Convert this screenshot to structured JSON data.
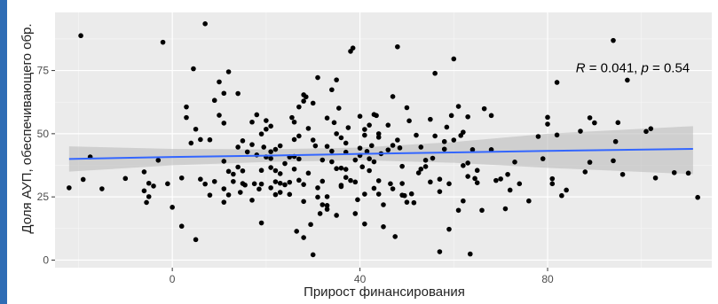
{
  "chart_data": {
    "type": "scatter",
    "xlabel": "Прирост финансирования",
    "ylabel": "Доля АУП, обеспечивающего обр.",
    "xlim": [
      -25,
      115
    ],
    "ylim": [
      -3,
      98
    ],
    "x_ticks": [
      0,
      40,
      80
    ],
    "y_ticks": [
      0,
      25,
      50,
      75
    ],
    "grid": true,
    "stat": {
      "label_text": "R = 0.041, p = 0.54",
      "parts": [
        "R",
        " = 0.041, ",
        "p",
        " = 0.54"
      ],
      "x": 86,
      "y": 76
    },
    "trend": {
      "color": "#3366ff",
      "ribbon_color": "#bdbdbd",
      "points": [
        {
          "x": -22,
          "lower": 35,
          "fit": 40,
          "upper": 45
        },
        {
          "x": 0,
          "lower": 37.5,
          "fit": 40.8,
          "upper": 44
        },
        {
          "x": 20,
          "lower": 38.8,
          "fit": 41.3,
          "upper": 43.8
        },
        {
          "x": 40,
          "lower": 39.5,
          "fit": 42,
          "upper": 44.5
        },
        {
          "x": 60,
          "lower": 38.5,
          "fit": 42.6,
          "upper": 46.7
        },
        {
          "x": 80,
          "lower": 36.5,
          "fit": 43.2,
          "upper": 50
        },
        {
          "x": 111,
          "lower": 34,
          "fit": 44,
          "upper": 53
        }
      ]
    },
    "series": [
      {
        "color": "#000000",
        "points": [
          [
            -22,
            28.6
          ],
          [
            -19.5,
            88.8
          ],
          [
            -17.5,
            40.8
          ],
          [
            -19,
            31.9
          ],
          [
            -15,
            28.2
          ],
          [
            -10,
            32.3
          ],
          [
            -6,
            27.4
          ],
          [
            -5.5,
            22.8
          ],
          [
            -5,
            25.1
          ],
          [
            -6,
            34.9
          ],
          [
            -5,
            30.4
          ],
          [
            -4,
            29.3
          ],
          [
            -3,
            39.5
          ],
          [
            -2,
            86.2
          ],
          [
            -1,
            30.2
          ],
          [
            0,
            20.9
          ],
          [
            2,
            32.5
          ],
          [
            2,
            13.4
          ],
          [
            3,
            56.4
          ],
          [
            3,
            60.6
          ],
          [
            4,
            46.3
          ],
          [
            4.5,
            75.7
          ],
          [
            5,
            8.1
          ],
          [
            5,
            51.8
          ],
          [
            6,
            32
          ],
          [
            6,
            47.7
          ],
          [
            7,
            93.5
          ],
          [
            7,
            30.1
          ],
          [
            8,
            25.7
          ],
          [
            8,
            47.6
          ],
          [
            9,
            31.1
          ],
          [
            9,
            63.2
          ],
          [
            10,
            57.3
          ],
          [
            10,
            70.5
          ],
          [
            11,
            28.2
          ],
          [
            11,
            39.1
          ],
          [
            11,
            22.9
          ],
          [
            11,
            54.2
          ],
          [
            11,
            66
          ],
          [
            12,
            25.8
          ],
          [
            12,
            74.5
          ],
          [
            12,
            35.1
          ],
          [
            13,
            34
          ],
          [
            13,
            31.1
          ],
          [
            14,
            36.8
          ],
          [
            14,
            65.9
          ],
          [
            14,
            44.7
          ],
          [
            14.5,
            26.8
          ],
          [
            15,
            47.2
          ],
          [
            15,
            35.3
          ],
          [
            15,
            30.3
          ],
          [
            15.5,
            29.7
          ],
          [
            16,
            42.8
          ],
          [
            17,
            23.7
          ],
          [
            17,
            54.6
          ],
          [
            17,
            45.7
          ],
          [
            17.5,
            30.2
          ],
          [
            18,
            57.5
          ],
          [
            18,
            41.6
          ],
          [
            18.5,
            28.1
          ],
          [
            19,
            35.5
          ],
          [
            19,
            49.9
          ],
          [
            19,
            30.1
          ],
          [
            19,
            14.7
          ],
          [
            19.5,
            44.7
          ],
          [
            20,
            51.8
          ],
          [
            20,
            40.8
          ],
          [
            20,
            55.2
          ],
          [
            21,
            28.6
          ],
          [
            21,
            36.6
          ],
          [
            21,
            40.2
          ],
          [
            21,
            53
          ],
          [
            21,
            42.9
          ],
          [
            22,
            43.8
          ],
          [
            22,
            25.9
          ],
          [
            22,
            31
          ],
          [
            22,
            35.4
          ],
          [
            23,
            34.2
          ],
          [
            23,
            30.4
          ],
          [
            23,
            45.2
          ],
          [
            23,
            26.8
          ],
          [
            24,
            29.8
          ],
          [
            24,
            38.2
          ],
          [
            25,
            30.8
          ],
          [
            25,
            26
          ],
          [
            25,
            40.8
          ],
          [
            25.5,
            56.4
          ],
          [
            26,
            47.7
          ],
          [
            26,
            54.6
          ],
          [
            26,
            36
          ],
          [
            26,
            41
          ],
          [
            26.5,
            11.4
          ],
          [
            27,
            40
          ],
          [
            27,
            31.6
          ],
          [
            27,
            60.6
          ],
          [
            27,
            49.1
          ],
          [
            28,
            29.9
          ],
          [
            28,
            62.9
          ],
          [
            28,
            23.2
          ],
          [
            28,
            65.4
          ],
          [
            28,
            8.9
          ],
          [
            28.5,
            64.6
          ],
          [
            29,
            52.1
          ],
          [
            29,
            34.4
          ],
          [
            29.5,
            14.1
          ],
          [
            30,
            47.5
          ],
          [
            30,
            2.1
          ],
          [
            30,
            62.1
          ],
          [
            30.5,
            45.2
          ],
          [
            31,
            28.6
          ],
          [
            31,
            72.2
          ],
          [
            31,
            24.9
          ],
          [
            31.5,
            18.4
          ],
          [
            32,
            21.9
          ],
          [
            32,
            31.2
          ],
          [
            32,
            39.6
          ],
          [
            33,
            21.6
          ],
          [
            33,
            25.1
          ],
          [
            33,
            56.2
          ],
          [
            33,
            45
          ],
          [
            33,
            20.1
          ],
          [
            34,
            43.1
          ],
          [
            34,
            38.9
          ],
          [
            34,
            67.4
          ],
          [
            34.5,
            54.4
          ],
          [
            35,
            17.7
          ],
          [
            35,
            71.3
          ],
          [
            35,
            36.2
          ],
          [
            35,
            50
          ],
          [
            35.5,
            60.1
          ],
          [
            36,
            48.4
          ],
          [
            36,
            29.6
          ],
          [
            36,
            29.1
          ],
          [
            36,
            36.4
          ],
          [
            37,
            46.3
          ],
          [
            37,
            42.7
          ],
          [
            37,
            32.7
          ],
          [
            37,
            35.9
          ],
          [
            37.5,
            52.4
          ],
          [
            38,
            31.5
          ],
          [
            38,
            82.6
          ],
          [
            38.5,
            83.9
          ],
          [
            39,
            18.4
          ],
          [
            39,
            30.9
          ],
          [
            39,
            39.6
          ],
          [
            39.5,
            23.9
          ],
          [
            40,
            44.3
          ],
          [
            40,
            41.4
          ],
          [
            40,
            56.9
          ],
          [
            40.5,
            36.9
          ],
          [
            41,
            49.4
          ],
          [
            41,
            26.1
          ],
          [
            41,
            14.3
          ],
          [
            41,
            51.7
          ],
          [
            41.5,
            43
          ],
          [
            42,
            40.1
          ],
          [
            42,
            53.4
          ],
          [
            42,
            35.4
          ],
          [
            42.5,
            45.3
          ],
          [
            43,
            57.6
          ],
          [
            43,
            28.4
          ],
          [
            43,
            38.9
          ],
          [
            43.5,
            57.2
          ],
          [
            44,
            48.6
          ],
          [
            44,
            50
          ],
          [
            44,
            26.1
          ],
          [
            44,
            31.4
          ],
          [
            44.5,
            42.1
          ],
          [
            45,
            21.9
          ],
          [
            45,
            13.2
          ],
          [
            46,
            43.6
          ],
          [
            46,
            53.4
          ],
          [
            46.5,
            30.2
          ],
          [
            47,
            28.2
          ],
          [
            47,
            64.7
          ],
          [
            47,
            45.4
          ],
          [
            47.5,
            9.3
          ],
          [
            48,
            84.4
          ],
          [
            48,
            47.5
          ],
          [
            48.5,
            44.4
          ],
          [
            49,
            37.1
          ],
          [
            49,
            30.3
          ],
          [
            49,
            25.7
          ],
          [
            49.5,
            25.5
          ],
          [
            50,
            22.9
          ],
          [
            50,
            60.3
          ],
          [
            50.5,
            55.1
          ],
          [
            51,
            26.2
          ],
          [
            51.5,
            22.7
          ],
          [
            52,
            49.4
          ],
          [
            52.5,
            34.5
          ],
          [
            53,
            36
          ],
          [
            53,
            44.7
          ],
          [
            54,
            37
          ],
          [
            54,
            39.5
          ],
          [
            55,
            30.9
          ],
          [
            55,
            55.7
          ],
          [
            55.5,
            40.3
          ],
          [
            56,
            73.9
          ],
          [
            56,
            49.1
          ],
          [
            57,
            3.3
          ],
          [
            57,
            32
          ],
          [
            57,
            27.1
          ],
          [
            58,
            43.9
          ],
          [
            58,
            46.9
          ],
          [
            58.5,
            52.6
          ],
          [
            59,
            30.2
          ],
          [
            59,
            12.2
          ],
          [
            59.5,
            57.2
          ],
          [
            60,
            79.6
          ],
          [
            60,
            47.5
          ],
          [
            61,
            60.8
          ],
          [
            61,
            19.7
          ],
          [
            61.5,
            49.3
          ],
          [
            62,
            37.4
          ],
          [
            62,
            23.4
          ],
          [
            62,
            50.6
          ],
          [
            63,
            33.1
          ],
          [
            63,
            38.4
          ],
          [
            63,
            56.7
          ],
          [
            63.5,
            2.4
          ],
          [
            64,
            43.7
          ],
          [
            64.5,
            32.3
          ],
          [
            65,
            35.5
          ],
          [
            65,
            30.6
          ],
          [
            66,
            19.7
          ],
          [
            66.5,
            59.9
          ],
          [
            68,
            57.2
          ],
          [
            68,
            43.7
          ],
          [
            69,
            31.5
          ],
          [
            70,
            32.1
          ],
          [
            71,
            20.3
          ],
          [
            71.5,
            33.9
          ],
          [
            72,
            27.7
          ],
          [
            73,
            38.8
          ],
          [
            74,
            30.2
          ],
          [
            76,
            23.4
          ],
          [
            78,
            48.9
          ],
          [
            79,
            40.1
          ],
          [
            80,
            56.5
          ],
          [
            80,
            53.8
          ],
          [
            81,
            30.2
          ],
          [
            81,
            32.2
          ],
          [
            82,
            49.5
          ],
          [
            82,
            70.3
          ],
          [
            83,
            25.5
          ],
          [
            84,
            27.7
          ],
          [
            87,
            51
          ],
          [
            88,
            34.9
          ],
          [
            89,
            38.7
          ],
          [
            89,
            56.3
          ],
          [
            90,
            54.3
          ],
          [
            94,
            86.9
          ],
          [
            94,
            39.3
          ],
          [
            94.5,
            46.9
          ],
          [
            95,
            54.4
          ],
          [
            96,
            33.9
          ],
          [
            97,
            71.2
          ],
          [
            101,
            50.9
          ],
          [
            102,
            52
          ],
          [
            103,
            32.5
          ],
          [
            107,
            34.6
          ],
          [
            110,
            34.4
          ],
          [
            112,
            24.8
          ]
        ]
      }
    ]
  }
}
